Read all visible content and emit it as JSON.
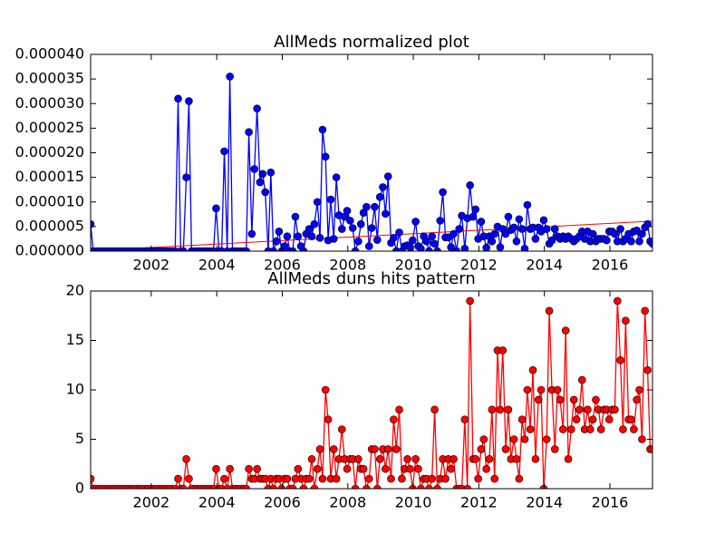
{
  "chart_data": [
    {
      "type": "line",
      "title": "AllMeds normalized plot",
      "color": "#0000ff",
      "marker": "o",
      "x": [
        2000.15,
        2000.23,
        2000.32,
        2000.4,
        2000.48,
        2000.57,
        2000.65,
        2000.73,
        2000.82,
        2000.9,
        2000.98,
        2001.07,
        2001.15,
        2001.23,
        2001.32,
        2001.4,
        2001.48,
        2001.57,
        2001.65,
        2001.73,
        2001.82,
        2001.9,
        2001.98,
        2002.07,
        2002.15,
        2002.23,
        2002.32,
        2002.4,
        2002.48,
        2002.57,
        2002.65,
        2002.73,
        2002.82,
        2002.9,
        2002.98,
        2003.07,
        2003.15,
        2003.23,
        2003.32,
        2003.4,
        2003.48,
        2003.57,
        2003.65,
        2003.73,
        2003.82,
        2003.9,
        2003.98,
        2004.07,
        2004.15,
        2004.23,
        2004.32,
        2004.4,
        2004.48,
        2004.57,
        2004.65,
        2004.73,
        2004.82,
        2004.9,
        2004.98,
        2005.07,
        2005.15,
        2005.23,
        2005.32,
        2005.4,
        2005.48,
        2005.57,
        2005.65,
        2005.73,
        2005.82,
        2005.9,
        2005.98,
        2006.07,
        2006.15,
        2006.23,
        2006.32,
        2006.4,
        2006.48,
        2006.57,
        2006.65,
        2006.73,
        2006.82,
        2006.9,
        2006.98,
        2007.07,
        2007.15,
        2007.23,
        2007.32,
        2007.4,
        2007.48,
        2007.57,
        2007.65,
        2007.73,
        2007.82,
        2007.9,
        2007.98,
        2008.07,
        2008.15,
        2008.23,
        2008.32,
        2008.4,
        2008.48,
        2008.57,
        2008.65,
        2008.73,
        2008.82,
        2008.9,
        2008.98,
        2009.07,
        2009.15,
        2009.23,
        2009.32,
        2009.4,
        2009.48,
        2009.57,
        2009.65,
        2009.73,
        2009.82,
        2009.9,
        2009.98,
        2010.07,
        2010.15,
        2010.23,
        2010.32,
        2010.4,
        2010.48,
        2010.57,
        2010.65,
        2010.73,
        2010.82,
        2010.9,
        2010.98,
        2011.07,
        2011.15,
        2011.23,
        2011.32,
        2011.4,
        2011.48,
        2011.57,
        2011.65,
        2011.73,
        2011.82,
        2011.9,
        2011.98,
        2012.07,
        2012.15,
        2012.23,
        2012.32,
        2012.4,
        2012.48,
        2012.57,
        2012.65,
        2012.73,
        2012.82,
        2012.9,
        2012.98,
        2013.07,
        2013.15,
        2013.23,
        2013.32,
        2013.4,
        2013.48,
        2013.57,
        2013.65,
        2013.73,
        2013.82,
        2013.9,
        2013.98,
        2014.07,
        2014.15,
        2014.23,
        2014.32,
        2014.4,
        2014.48,
        2014.57,
        2014.65,
        2014.73,
        2014.82,
        2014.9,
        2014.98,
        2015.07,
        2015.15,
        2015.23,
        2015.32,
        2015.4,
        2015.48,
        2015.57,
        2015.65,
        2015.73,
        2015.82,
        2015.9,
        2015.98,
        2016.07,
        2016.15,
        2016.23,
        2016.32,
        2016.4,
        2016.48,
        2016.57,
        2016.65,
        2016.73,
        2016.82,
        2016.9,
        2016.98,
        2017.07,
        2017.15,
        2017.23,
        2017.3
      ],
      "values": [
        5.5e-06,
        0,
        0,
        0,
        0,
        0,
        0,
        0,
        0,
        0,
        0,
        0,
        0,
        0,
        0,
        0,
        0,
        0,
        0,
        0,
        0,
        0,
        0,
        0,
        0,
        0,
        0,
        0,
        0,
        0,
        0,
        0,
        3.1e-05,
        0,
        0,
        1.5e-05,
        3.05e-05,
        0,
        0,
        0,
        0,
        0,
        0,
        0,
        0,
        0,
        8.7e-06,
        0,
        0,
        2.03e-05,
        0,
        3.55e-05,
        0,
        0,
        0,
        0,
        0,
        0,
        2.42e-05,
        3.5e-06,
        1.67e-05,
        2.9e-05,
        1.4e-05,
        1.57e-05,
        1.2e-05,
        0,
        1.6e-05,
        0,
        2e-06,
        4e-06,
        0,
        1e-06,
        3e-06,
        0,
        0,
        7e-06,
        3e-06,
        1e-06,
        0,
        3.5e-06,
        4.5e-06,
        3e-06,
        5.5e-06,
        1e-05,
        2.7e-06,
        2.47e-05,
        1.92e-05,
        2.2e-06,
        1.05e-05,
        2.5e-06,
        1.5e-05,
        7.3e-06,
        4.5e-06,
        7e-06,
        8.2e-06,
        6.2e-06,
        4.7e-06,
        0,
        2e-06,
        5.5e-06,
        7.8e-06,
        9e-06,
        1e-06,
        4.7e-06,
        9e-06,
        2.3e-06,
        1.1e-05,
        1.3e-05,
        7.6e-06,
        1.52e-05,
        1.7e-06,
        2.7e-06,
        0,
        3.8e-06,
        0,
        1e-06,
        1.2e-06,
        8e-07,
        2.2e-06,
        6e-06,
        1e-06,
        5e-07,
        3e-06,
        2e-06,
        0,
        3e-06,
        1.5e-06,
        0,
        6.2e-06,
        1.2e-05,
        2.8e-06,
        2.8e-06,
        8e-07,
        3.5e-06,
        0,
        4.5e-06,
        7.2e-06,
        5e-07,
        6.7e-06,
        1.34e-05,
        7e-06,
        8.5e-06,
        2.5e-06,
        6e-06,
        3e-06,
        7e-07,
        3e-06,
        2e-06,
        3.5e-06,
        5e-06,
        8e-07,
        4.5e-06,
        3.5e-06,
        7e-06,
        4.3e-06,
        4.8e-06,
        2e-06,
        6.5e-06,
        4.5e-06,
        5e-07,
        9.4e-06,
        4.5e-06,
        4.8e-06,
        2.5e-06,
        4.8e-06,
        4e-06,
        6.3e-06,
        4.5e-06,
        1.5e-06,
        2.2e-06,
        4.5e-06,
        3e-06,
        2.5e-06,
        3e-06,
        2.5e-06,
        3e-06,
        2.5e-06,
        2e-06,
        2.5e-06,
        3e-06,
        4e-06,
        2.5e-06,
        4e-06,
        2e-06,
        3.5e-06,
        2e-06,
        2.5e-06,
        2.5e-06,
        2.5e-06,
        2.2e-06,
        4e-06,
        4e-06,
        3.5e-06,
        2e-06,
        4.5e-06,
        2e-06,
        2.5e-06,
        3.5e-06,
        2e-06,
        4e-06,
        4.2e-06,
        2e-06,
        3.5e-06,
        4.8e-06,
        5.5e-06,
        2e-06,
        1.5e-06
      ],
      "trend": {
        "color": "#ff0000",
        "x": [
          2000.15,
          2017.3
        ],
        "values": [
          1e-07,
          6.1e-06
        ]
      },
      "xlim": [
        2000.15,
        2017.3
      ],
      "xticks": [
        2002,
        2004,
        2006,
        2008,
        2010,
        2012,
        2014,
        2016
      ],
      "ylim": [
        0,
        4e-05
      ],
      "yticks": [
        {
          "value": 0,
          "label": "0.000000"
        },
        {
          "value": 5e-06,
          "label": "0.000005"
        },
        {
          "value": 1e-05,
          "label": "0.000010"
        },
        {
          "value": 1.5e-05,
          "label": "0.000015"
        },
        {
          "value": 2e-05,
          "label": "0.000020"
        },
        {
          "value": 2.5e-05,
          "label": "0.000025"
        },
        {
          "value": 3e-05,
          "label": "0.000030"
        },
        {
          "value": 3.5e-05,
          "label": "0.000035"
        },
        {
          "value": 4e-05,
          "label": "0.000040"
        }
      ]
    },
    {
      "type": "line",
      "title": "AllMeds duns hits pattern",
      "color": "#ff0000",
      "marker": "o",
      "x": [
        2000.15,
        2000.23,
        2000.32,
        2000.4,
        2000.48,
        2000.57,
        2000.65,
        2000.73,
        2000.82,
        2000.9,
        2000.98,
        2001.07,
        2001.15,
        2001.23,
        2001.32,
        2001.4,
        2001.48,
        2001.57,
        2001.65,
        2001.73,
        2001.82,
        2001.9,
        2001.98,
        2002.07,
        2002.15,
        2002.23,
        2002.32,
        2002.4,
        2002.48,
        2002.57,
        2002.65,
        2002.73,
        2002.82,
        2002.9,
        2002.98,
        2003.07,
        2003.15,
        2003.23,
        2003.32,
        2003.4,
        2003.48,
        2003.57,
        2003.65,
        2003.73,
        2003.82,
        2003.9,
        2003.98,
        2004.07,
        2004.15,
        2004.23,
        2004.32,
        2004.4,
        2004.48,
        2004.57,
        2004.65,
        2004.73,
        2004.82,
        2004.9,
        2004.98,
        2005.07,
        2005.15,
        2005.23,
        2005.32,
        2005.4,
        2005.48,
        2005.57,
        2005.65,
        2005.73,
        2005.82,
        2005.9,
        2005.98,
        2006.07,
        2006.15,
        2006.23,
        2006.32,
        2006.4,
        2006.48,
        2006.57,
        2006.65,
        2006.73,
        2006.82,
        2006.9,
        2006.98,
        2007.07,
        2007.15,
        2007.23,
        2007.32,
        2007.4,
        2007.48,
        2007.57,
        2007.65,
        2007.73,
        2007.82,
        2007.9,
        2007.98,
        2008.07,
        2008.15,
        2008.23,
        2008.32,
        2008.4,
        2008.48,
        2008.57,
        2008.65,
        2008.73,
        2008.82,
        2008.9,
        2008.98,
        2009.07,
        2009.15,
        2009.23,
        2009.32,
        2009.4,
        2009.48,
        2009.57,
        2009.65,
        2009.73,
        2009.82,
        2009.9,
        2009.98,
        2010.07,
        2010.15,
        2010.23,
        2010.32,
        2010.4,
        2010.48,
        2010.57,
        2010.65,
        2010.73,
        2010.82,
        2010.9,
        2010.98,
        2011.07,
        2011.15,
        2011.23,
        2011.32,
        2011.4,
        2011.48,
        2011.57,
        2011.65,
        2011.73,
        2011.82,
        2011.9,
        2011.98,
        2012.07,
        2012.15,
        2012.23,
        2012.32,
        2012.4,
        2012.48,
        2012.57,
        2012.65,
        2012.73,
        2012.82,
        2012.9,
        2012.98,
        2013.07,
        2013.15,
        2013.23,
        2013.32,
        2013.4,
        2013.48,
        2013.57,
        2013.65,
        2013.73,
        2013.82,
        2013.9,
        2013.98,
        2014.07,
        2014.15,
        2014.23,
        2014.32,
        2014.4,
        2014.48,
        2014.57,
        2014.65,
        2014.73,
        2014.82,
        2014.9,
        2014.98,
        2015.07,
        2015.15,
        2015.23,
        2015.32,
        2015.4,
        2015.48,
        2015.57,
        2015.65,
        2015.73,
        2015.82,
        2015.9,
        2015.98,
        2016.07,
        2016.15,
        2016.23,
        2016.32,
        2016.4,
        2016.48,
        2016.57,
        2016.65,
        2016.73,
        2016.82,
        2016.9,
        2016.98,
        2017.07,
        2017.15,
        2017.23,
        2017.3
      ],
      "values": [
        1,
        0,
        0,
        0,
        0,
        0,
        0,
        0,
        0,
        0,
        0,
        0,
        0,
        0,
        0,
        0,
        0,
        0,
        0,
        0,
        0,
        0,
        0,
        0,
        0,
        0,
        0,
        0,
        0,
        0,
        0,
        0,
        1,
        0,
        0,
        3,
        1,
        0,
        0,
        0,
        0,
        0,
        0,
        0,
        0,
        0,
        2,
        0,
        0,
        1,
        0,
        2,
        0,
        0,
        0,
        0,
        0,
        0,
        2,
        1,
        1,
        2,
        1,
        1,
        1,
        0,
        1,
        0,
        1,
        1,
        0,
        1,
        1,
        0,
        0,
        1,
        2,
        1,
        0,
        1,
        1,
        3,
        0,
        2,
        4,
        1,
        10,
        7,
        1,
        4,
        1,
        3,
        6,
        3,
        2,
        3,
        3,
        0,
        3,
        2,
        2,
        0,
        1,
        4,
        4,
        0,
        3,
        4,
        2,
        4,
        1,
        7,
        4,
        8,
        1,
        2,
        3,
        2,
        0,
        3,
        2,
        0,
        1,
        1,
        0,
        1,
        8,
        0,
        1,
        3,
        1,
        3,
        2,
        3,
        0,
        0,
        0,
        7,
        0,
        19,
        3,
        3,
        1,
        4,
        5,
        2,
        3,
        8,
        1,
        14,
        8,
        14,
        4,
        8,
        3,
        5,
        3,
        1,
        7,
        5,
        10,
        6,
        12,
        3,
        9,
        10,
        0,
        5,
        18,
        10,
        4,
        10,
        9,
        6,
        16,
        3,
        6,
        9,
        7,
        8,
        11,
        6,
        8,
        6,
        7,
        9,
        8,
        6,
        8,
        8,
        7,
        8,
        8,
        19,
        13,
        6,
        17,
        7,
        7,
        6,
        9,
        10,
        5,
        18,
        12,
        4,
        4
      ],
      "xlim": [
        2000.15,
        2017.3
      ],
      "xticks": [
        2002,
        2004,
        2006,
        2008,
        2010,
        2012,
        2014,
        2016
      ],
      "ylim": [
        0,
        20
      ],
      "yticks": [
        0,
        5,
        10,
        15,
        20
      ]
    }
  ]
}
